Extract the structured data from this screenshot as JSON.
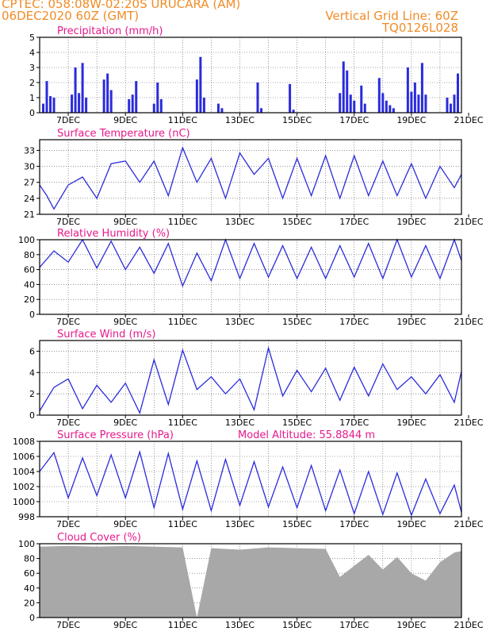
{
  "header": {
    "line1_left": "CPTEC:   058:08W-02:20S   URUCARA (AM)",
    "line2_left": "06DEC2020 60Z (GMT)",
    "line2_right": "Vertical Grid Line: 60Z",
    "line3_right": "TQ0126L028"
  },
  "colors": {
    "header": "#f08c28",
    "title": "#e6198c",
    "series": "#2b2bdc",
    "cloud_fill": "#a8a8a8",
    "grid": "#555555"
  },
  "date_ticks": [
    "7DEC",
    "9DEC",
    "11DEC",
    "13DEC",
    "15DEC",
    "17DEC",
    "19DEC",
    "21DEC"
  ],
  "panels": {
    "precip": {
      "title": "Precipitation (mm/h)",
      "yticks": [
        "5",
        "4",
        "3",
        "2",
        "1",
        "0"
      ]
    },
    "temp": {
      "title": "Surface Temperature (nC)",
      "yticks": [
        "33",
        "30",
        "27",
        "24",
        "21"
      ]
    },
    "rh": {
      "title": "Relative Humidity (%)",
      "yticks": [
        "100",
        "80",
        "60",
        "40",
        "20",
        "0"
      ]
    },
    "wind": {
      "title": "Surface Wind (m/s)",
      "yticks": [
        "6",
        "4",
        "2",
        "0"
      ]
    },
    "pressure": {
      "title": "Surface Pressure (hPa)",
      "annotation": "Model Altitude: 55.8844 m",
      "yticks": [
        "1008",
        "1006",
        "1004",
        "1002",
        "1000",
        "998"
      ]
    },
    "cloud": {
      "title": "Cloud Cover (%)",
      "yticks": [
        "100",
        "80",
        "60",
        "40",
        "20",
        "0"
      ]
    }
  },
  "chart_data": [
    {
      "type": "bar",
      "title": "Precipitation (mm/h)",
      "x_start": "2020-12-06T06:00Z",
      "x_end": "2020-12-21T00:00Z",
      "ylim": [
        0,
        5
      ],
      "grid": true,
      "x": [
        "2020-12-06T09:00Z",
        "2020-12-06T12:00Z",
        "2020-12-06T15:00Z",
        "2020-12-06T18:00Z",
        "2020-12-07T09:00Z",
        "2020-12-07T12:00Z",
        "2020-12-07T15:00Z",
        "2020-12-07T18:00Z",
        "2020-12-07T21:00Z",
        "2020-12-08T12:00Z",
        "2020-12-08T15:00Z",
        "2020-12-08T18:00Z",
        "2020-12-09T09:00Z",
        "2020-12-09T12:00Z",
        "2020-12-09T15:00Z",
        "2020-12-10T06:00Z",
        "2020-12-10T09:00Z",
        "2020-12-10T12:00Z",
        "2020-12-11T18:00Z",
        "2020-12-11T21:00Z",
        "2020-12-12T00:00Z",
        "2020-12-12T12:00Z",
        "2020-12-12T15:00Z",
        "2020-12-13T21:00Z",
        "2020-12-14T00:00Z",
        "2020-12-15T00:00Z",
        "2020-12-15T03:00Z",
        "2020-12-16T18:00Z",
        "2020-12-16T21:00Z",
        "2020-12-17T00:00Z",
        "2020-12-17T03:00Z",
        "2020-12-17T06:00Z",
        "2020-12-17T12:00Z",
        "2020-12-17T15:00Z",
        "2020-12-18T03:00Z",
        "2020-12-18T06:00Z",
        "2020-12-18T09:00Z",
        "2020-12-18T12:00Z",
        "2020-12-18T15:00Z",
        "2020-12-19T03:00Z",
        "2020-12-19T06:00Z",
        "2020-12-19T09:00Z",
        "2020-12-19T12:00Z",
        "2020-12-19T15:00Z",
        "2020-12-19T18:00Z",
        "2020-12-20T12:00Z",
        "2020-12-20T15:00Z",
        "2020-12-20T18:00Z",
        "2020-12-20T21:00Z"
      ],
      "values": [
        0.6,
        2.1,
        1.1,
        1.0,
        1.2,
        3.0,
        1.3,
        3.3,
        1.0,
        2.2,
        2.6,
        1.5,
        0.9,
        1.2,
        2.1,
        0.6,
        2.0,
        0.9,
        2.2,
        3.7,
        1.0,
        0.6,
        0.3,
        2.0,
        0.3,
        1.9,
        0.2,
        1.3,
        3.4,
        2.8,
        1.2,
        0.8,
        1.8,
        0.6,
        2.3,
        1.3,
        0.8,
        0.5,
        0.3,
        3.0,
        1.4,
        2.0,
        1.2,
        3.3,
        1.2,
        1.0,
        0.6,
        1.2,
        2.6
      ]
    },
    {
      "type": "line",
      "title": "Surface Temperature (nC)",
      "ylim": [
        21,
        35
      ],
      "grid": true,
      "x": [
        "2020-12-06T06:00Z",
        "2020-12-06T12:00Z",
        "2020-12-06T18:00Z",
        "2020-12-07T06:00Z",
        "2020-12-07T18:00Z",
        "2020-12-08T06:00Z",
        "2020-12-08T18:00Z",
        "2020-12-09T06:00Z",
        "2020-12-09T18:00Z",
        "2020-12-10T06:00Z",
        "2020-12-10T18:00Z",
        "2020-12-11T06:00Z",
        "2020-12-11T18:00Z",
        "2020-12-12T06:00Z",
        "2020-12-12T18:00Z",
        "2020-12-13T06:00Z",
        "2020-12-13T18:00Z",
        "2020-12-14T06:00Z",
        "2020-12-14T18:00Z",
        "2020-12-15T06:00Z",
        "2020-12-15T18:00Z",
        "2020-12-16T06:00Z",
        "2020-12-16T18:00Z",
        "2020-12-17T06:00Z",
        "2020-12-17T18:00Z",
        "2020-12-18T06:00Z",
        "2020-12-18T18:00Z",
        "2020-12-19T06:00Z",
        "2020-12-19T18:00Z",
        "2020-12-20T06:00Z",
        "2020-12-20T18:00Z",
        "2020-12-21T00:00Z"
      ],
      "values": [
        26.5,
        24.5,
        22.0,
        26.5,
        28.0,
        24.0,
        30.5,
        31.0,
        27.0,
        31.0,
        24.5,
        33.5,
        27.0,
        31.5,
        24.0,
        32.5,
        28.5,
        31.5,
        24.0,
        31.5,
        24.5,
        32.0,
        24.0,
        32.0,
        24.5,
        31.0,
        24.5,
        30.5,
        24.0,
        30.0,
        26.0,
        28.5
      ]
    },
    {
      "type": "line",
      "title": "Relative Humidity (%)",
      "ylim": [
        0,
        100
      ],
      "grid": true,
      "x": [
        "2020-12-06T06:00Z",
        "2020-12-06T18:00Z",
        "2020-12-07T06:00Z",
        "2020-12-07T18:00Z",
        "2020-12-08T06:00Z",
        "2020-12-08T18:00Z",
        "2020-12-09T06:00Z",
        "2020-12-09T18:00Z",
        "2020-12-10T06:00Z",
        "2020-12-10T18:00Z",
        "2020-12-11T06:00Z",
        "2020-12-11T18:00Z",
        "2020-12-12T06:00Z",
        "2020-12-12T18:00Z",
        "2020-12-13T06:00Z",
        "2020-12-13T18:00Z",
        "2020-12-14T06:00Z",
        "2020-12-14T18:00Z",
        "2020-12-15T06:00Z",
        "2020-12-15T18:00Z",
        "2020-12-16T06:00Z",
        "2020-12-16T18:00Z",
        "2020-12-17T06:00Z",
        "2020-12-17T18:00Z",
        "2020-12-18T06:00Z",
        "2020-12-18T18:00Z",
        "2020-12-19T06:00Z",
        "2020-12-19T18:00Z",
        "2020-12-20T06:00Z",
        "2020-12-20T18:00Z",
        "2020-12-21T00:00Z"
      ],
      "values": [
        63,
        85,
        70,
        100,
        62,
        98,
        60,
        90,
        55,
        95,
        38,
        82,
        45,
        100,
        48,
        95,
        50,
        92,
        48,
        90,
        48,
        92,
        50,
        95,
        48,
        100,
        50,
        92,
        48,
        100,
        72
      ]
    },
    {
      "type": "line",
      "title": "Surface Wind (m/s)",
      "ylim": [
        0,
        7
      ],
      "grid": true,
      "x": [
        "2020-12-06T06:00Z",
        "2020-12-06T18:00Z",
        "2020-12-07T06:00Z",
        "2020-12-07T18:00Z",
        "2020-12-08T06:00Z",
        "2020-12-08T18:00Z",
        "2020-12-09T06:00Z",
        "2020-12-09T18:00Z",
        "2020-12-10T06:00Z",
        "2020-12-10T18:00Z",
        "2020-12-11T06:00Z",
        "2020-12-11T18:00Z",
        "2020-12-12T06:00Z",
        "2020-12-12T18:00Z",
        "2020-12-13T06:00Z",
        "2020-12-13T18:00Z",
        "2020-12-14T06:00Z",
        "2020-12-14T18:00Z",
        "2020-12-15T06:00Z",
        "2020-12-15T18:00Z",
        "2020-12-16T06:00Z",
        "2020-12-16T18:00Z",
        "2020-12-17T06:00Z",
        "2020-12-17T18:00Z",
        "2020-12-18T06:00Z",
        "2020-12-18T18:00Z",
        "2020-12-19T06:00Z",
        "2020-12-19T18:00Z",
        "2020-12-20T06:00Z",
        "2020-12-20T18:00Z",
        "2020-12-21T00:00Z"
      ],
      "values": [
        0.4,
        2.6,
        3.4,
        0.6,
        2.8,
        1.2,
        3.0,
        0.2,
        5.2,
        1.0,
        6.1,
        2.4,
        3.6,
        2.0,
        3.4,
        0.5,
        6.3,
        1.8,
        4.2,
        2.2,
        4.4,
        1.4,
        4.5,
        1.8,
        4.8,
        2.4,
        3.6,
        2.0,
        3.8,
        1.2,
        4.1
      ]
    },
    {
      "type": "line",
      "title": "Surface Pressure (hPa)",
      "ylim": [
        998,
        1008
      ],
      "grid": true,
      "x": [
        "2020-12-06T06:00Z",
        "2020-12-06T18:00Z",
        "2020-12-07T06:00Z",
        "2020-12-07T18:00Z",
        "2020-12-08T06:00Z",
        "2020-12-08T18:00Z",
        "2020-12-09T06:00Z",
        "2020-12-09T18:00Z",
        "2020-12-10T06:00Z",
        "2020-12-10T18:00Z",
        "2020-12-11T06:00Z",
        "2020-12-11T18:00Z",
        "2020-12-12T06:00Z",
        "2020-12-12T18:00Z",
        "2020-12-13T06:00Z",
        "2020-12-13T18:00Z",
        "2020-12-14T06:00Z",
        "2020-12-14T18:00Z",
        "2020-12-15T06:00Z",
        "2020-12-15T18:00Z",
        "2020-12-16T06:00Z",
        "2020-12-16T18:00Z",
        "2020-12-17T06:00Z",
        "2020-12-17T18:00Z",
        "2020-12-18T06:00Z",
        "2020-12-18T18:00Z",
        "2020-12-19T06:00Z",
        "2020-12-19T18:00Z",
        "2020-12-20T06:00Z",
        "2020-12-20T18:00Z",
        "2020-12-21T00:00Z"
      ],
      "values": [
        1004.0,
        1006.5,
        1000.5,
        1005.8,
        1000.8,
        1006.2,
        1000.5,
        1006.6,
        999.2,
        1006.4,
        999.0,
        1005.4,
        998.8,
        1005.6,
        999.5,
        1005.3,
        999.3,
        1004.6,
        999.2,
        1004.8,
        998.8,
        1004.2,
        998.4,
        1004.0,
        998.3,
        1003.8,
        998.2,
        1003.0,
        998.4,
        1002.2,
        998.6
      ]
    },
    {
      "type": "area",
      "title": "Cloud Cover (%)",
      "ylim": [
        0,
        100
      ],
      "grid": true,
      "x": [
        "2020-12-06T06:00Z",
        "2020-12-07T06:00Z",
        "2020-12-08T06:00Z",
        "2020-12-09T06:00Z",
        "2020-12-10T06:00Z",
        "2020-12-11T06:00Z",
        "2020-12-11T18:00Z",
        "2020-12-12T06:00Z",
        "2020-12-13T06:00Z",
        "2020-12-14T06:00Z",
        "2020-12-15T06:00Z",
        "2020-12-16T06:00Z",
        "2020-12-16T18:00Z",
        "2020-12-17T06:00Z",
        "2020-12-17T18:00Z",
        "2020-12-18T06:00Z",
        "2020-12-18T18:00Z",
        "2020-12-19T06:00Z",
        "2020-12-19T18:00Z",
        "2020-12-20T06:00Z",
        "2020-12-20T18:00Z",
        "2020-12-21T00:00Z"
      ],
      "values": [
        96,
        97,
        96,
        97,
        96,
        95,
        0,
        94,
        92,
        95,
        94,
        93,
        55,
        70,
        85,
        65,
        82,
        60,
        50,
        75,
        88,
        90
      ]
    }
  ]
}
